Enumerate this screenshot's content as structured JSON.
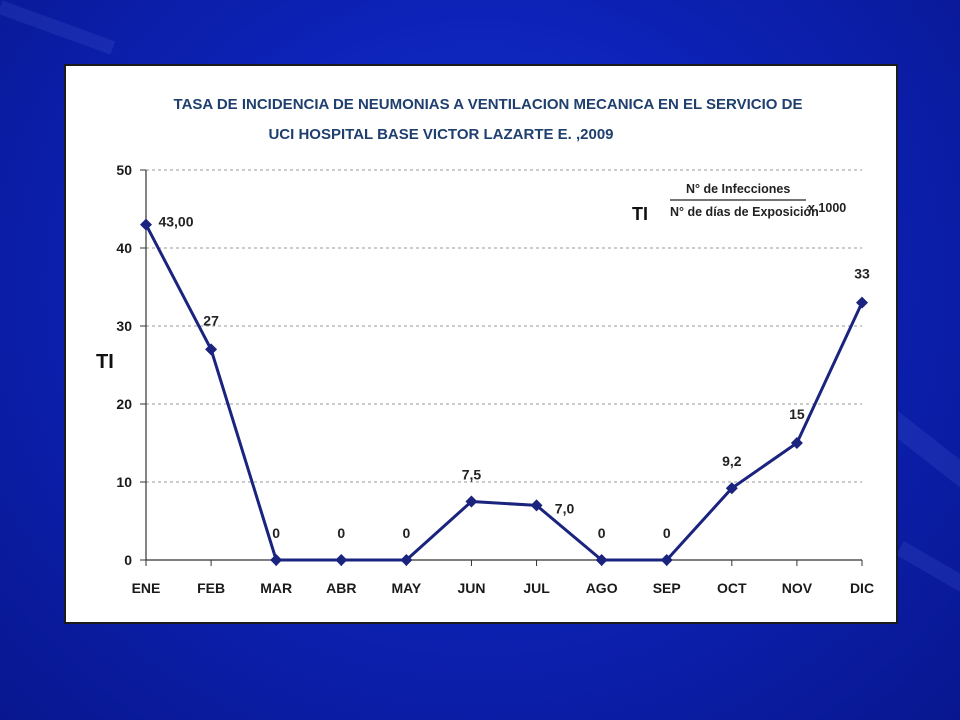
{
  "slide": {
    "background_color": "#0d22b8",
    "card_border_color": "#1b1b1b"
  },
  "formula": {
    "symbol": "TI",
    "numerator": "N° de Infecciones",
    "denominator": "N° de días de Exposición",
    "multiplier": "x 1000"
  },
  "chart_data": {
    "type": "line",
    "title": [
      "TASA DE INCIDENCIA  DE NEUMONIAS  A VENTILACION MECANICA EN EL SERVICIO DE",
      "UCI HOSPITAL BASE  VICTOR LAZARTE E. ,2009"
    ],
    "xlabel": "",
    "ylabel": "TI",
    "categories": [
      "ENE",
      "FEB",
      "MAR",
      "ABR",
      "MAY",
      "JUN",
      "JUL",
      "AGO",
      "SEP",
      "OCT",
      "NOV",
      "DIC"
    ],
    "series": [
      {
        "values": [
          43,
          27,
          0,
          0,
          0,
          7.5,
          7,
          0,
          0,
          9.2,
          15,
          33
        ],
        "data_labels": [
          "43,00",
          "27",
          "0",
          "0",
          "0",
          "7,5",
          "7,0",
          "0",
          "0",
          "9,2",
          "15",
          "33"
        ],
        "color": "#1a237e",
        "marker": "diamond"
      }
    ],
    "ylim": [
      0,
      50
    ],
    "yticks": [
      0,
      10,
      20,
      30,
      40,
      50
    ],
    "grid": "horizontal-dashed",
    "legend": "none"
  }
}
